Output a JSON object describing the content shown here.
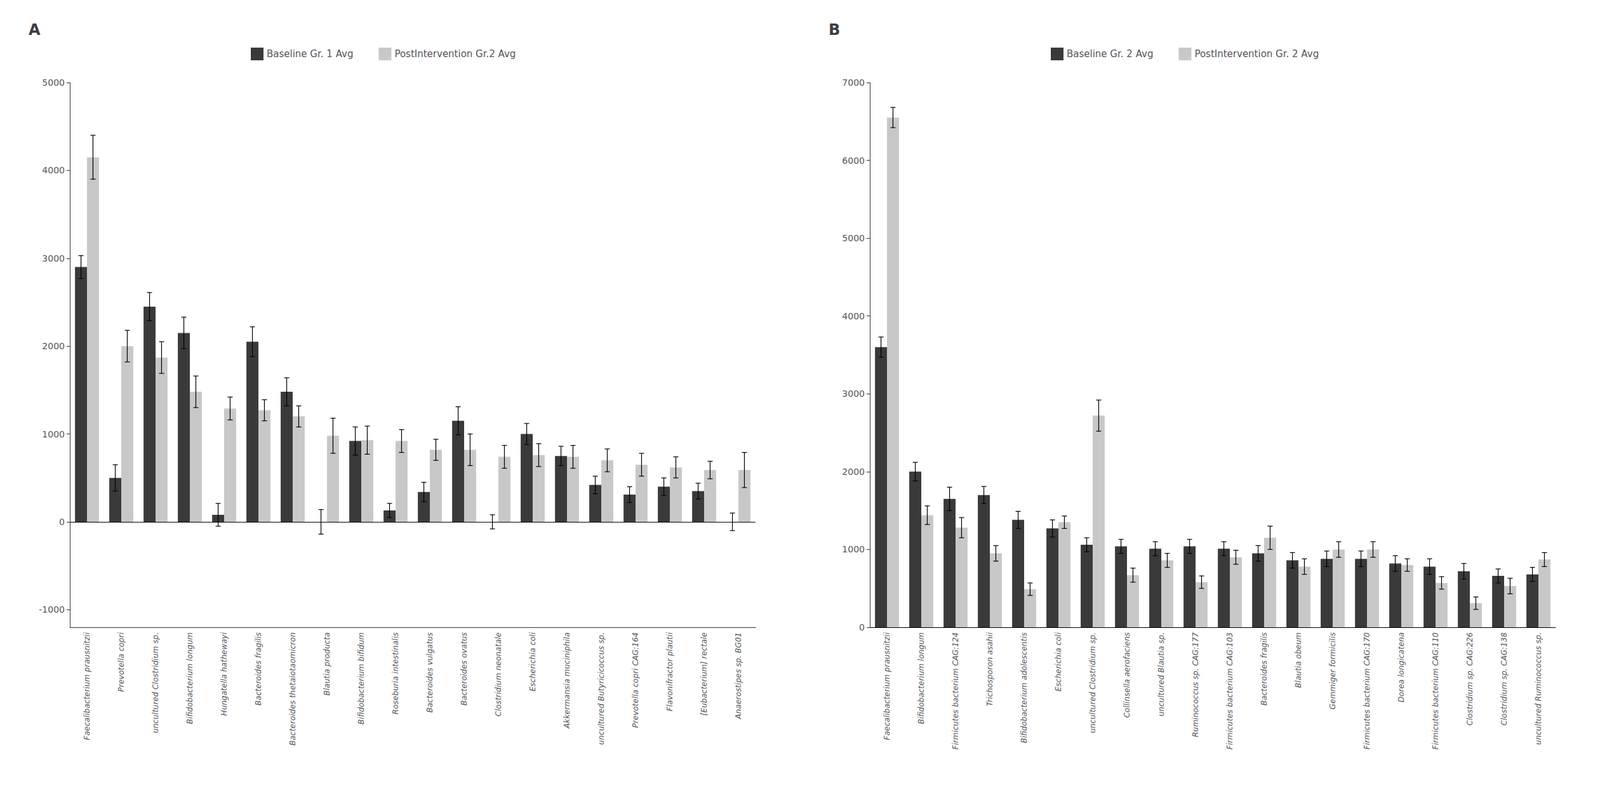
{
  "chart_data": [
    {
      "type": "bar",
      "title": "A",
      "categories": [
        "Faecalibacterium prausnitzii",
        "Prevotella copri",
        "uncultured Clostridium sp.",
        "Bifidobacterium longum",
        "Hungatella hathewayi",
        "Bacteroides fragilis",
        "Bacteroides thetaiotaomicron",
        "Blautia producta",
        "Bifidobacterium bifidum",
        "Roseburia intestinalis",
        "Bacteroides vulgatus",
        "Bacteroides ovatus",
        "Clostridium neonatale",
        "Escherichia coli",
        "Akkermansia muciniphila",
        "uncultured Butyricicoccus sp.",
        "Prevotella copri CAG:164",
        "Flavonifractor plautii",
        "[Eubacterium] rectale",
        "Anaerostipes sp. BG01"
      ],
      "series": [
        {
          "name": "Baseline Gr. 1 Avg",
          "color": "#3a3a3a",
          "values": [
            2900,
            500,
            2450,
            2150,
            80,
            2050,
            1480,
            0,
            920,
            130,
            340,
            1150,
            0,
            1000,
            750,
            420,
            310,
            400,
            350,
            0
          ],
          "errors": [
            130,
            150,
            160,
            180,
            130,
            170,
            160,
            140,
            160,
            80,
            110,
            160,
            80,
            120,
            110,
            100,
            90,
            100,
            90,
            100
          ]
        },
        {
          "name": "PostIntervention Gr.2 Avg",
          "color": "#c8c8c8",
          "values": [
            4150,
            2000,
            1870,
            1480,
            1290,
            1270,
            1200,
            980,
            930,
            920,
            820,
            820,
            740,
            760,
            740,
            700,
            650,
            620,
            590,
            590
          ],
          "errors": [
            250,
            180,
            180,
            180,
            130,
            120,
            120,
            200,
            160,
            130,
            120,
            180,
            130,
            130,
            130,
            130,
            130,
            120,
            100,
            200
          ]
        }
      ],
      "ylim": [
        -1200,
        5000
      ],
      "yticks": [
        -1000,
        0,
        1000,
        2000,
        3000,
        4000,
        5000
      ],
      "grid": false,
      "legend": "top"
    },
    {
      "type": "bar",
      "title": "B",
      "categories": [
        "Faecalibacterium prausnitzii",
        "Bifidobacterium longum",
        "Firmicutes bacterium CAG:124",
        "Trichosporon asahii",
        "Bifidobacterium adolescentis",
        "Escherichia coli",
        "uncultured Clostridium sp.",
        "Collinsella aerofaciens",
        "uncultured Blautia sp.",
        "Ruminococcus sp. CAG:177",
        "Firmicutes bacterium CAG:103",
        "Bacteroides fragilis",
        "Blautia obeum",
        "Gemmiger formicilis",
        "Firmicutes bacterium CAG:170",
        "Dorea longicatena",
        "Firmicutes bacterium CAG:110",
        "Clostridium sp. CAG:226",
        "Clostridium sp. CAG:138",
        "uncultured Ruminococcus sp."
      ],
      "series": [
        {
          "name": "Baseline Gr. 2 Avg",
          "color": "#3a3a3a",
          "values": [
            3600,
            2000,
            1650,
            1700,
            1380,
            1270,
            1060,
            1040,
            1010,
            1040,
            1010,
            950,
            860,
            880,
            880,
            820,
            780,
            720,
            660,
            680
          ],
          "errors": [
            130,
            120,
            150,
            110,
            110,
            110,
            90,
            90,
            90,
            90,
            90,
            100,
            100,
            100,
            100,
            100,
            100,
            100,
            90,
            90
          ]
        },
        {
          "name": "PostIntervention Gr. 2 Avg",
          "color": "#c8c8c8",
          "values": [
            6550,
            1440,
            1280,
            950,
            490,
            1350,
            2720,
            670,
            860,
            580,
            900,
            1150,
            780,
            1000,
            1000,
            800,
            570,
            310,
            530,
            870
          ],
          "errors": [
            130,
            120,
            130,
            100,
            80,
            80,
            200,
            90,
            90,
            80,
            90,
            150,
            100,
            100,
            100,
            80,
            80,
            80,
            100,
            90
          ]
        }
      ],
      "ylim": [
        0,
        7000
      ],
      "yticks": [
        0,
        1000,
        2000,
        3000,
        4000,
        5000,
        6000,
        7000
      ],
      "grid": false,
      "legend": "top"
    }
  ]
}
